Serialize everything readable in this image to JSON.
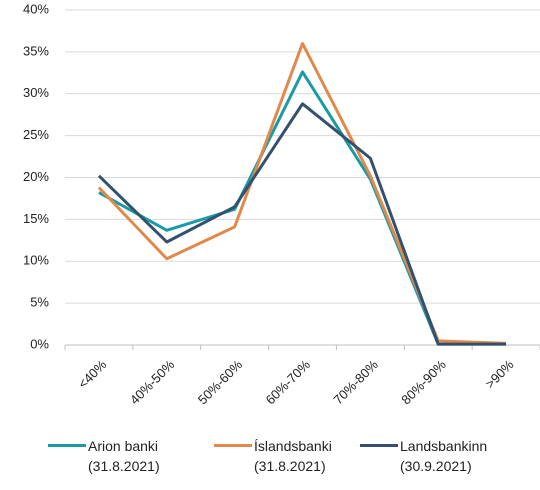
{
  "chart_data": {
    "type": "line",
    "categories": [
      "<40%",
      "40%-50%",
      "50%-60%",
      "60%-70%",
      "70%-80%",
      "80%-90%",
      ">90%"
    ],
    "series": [
      {
        "name": "Arion banki\n(31.8.2021)",
        "color": "#1b9aa6",
        "values": [
          18.2,
          13.7,
          16.2,
          32.6,
          19.8,
          0.1,
          0.1
        ]
      },
      {
        "name": "Íslandsbanki\n(31.8.2021)",
        "color": "#e0894a",
        "values": [
          18.8,
          10.3,
          14.1,
          36.0,
          20.2,
          0.5,
          0.2
        ]
      },
      {
        "name": "Landsbankinn\n(30.9.2021)",
        "color": "#33506e",
        "values": [
          20.2,
          12.3,
          16.5,
          28.8,
          22.3,
          0.1,
          0.1
        ]
      }
    ],
    "ylim": [
      0,
      40
    ],
    "yticks": [
      {
        "value": 0,
        "label": "0%"
      },
      {
        "value": 5,
        "label": "5%"
      },
      {
        "value": 10,
        "label": "10%"
      },
      {
        "value": 15,
        "label": "15%"
      },
      {
        "value": 20,
        "label": "20%"
      },
      {
        "value": 25,
        "label": "25%"
      },
      {
        "value": 30,
        "label": "30%"
      },
      {
        "value": 35,
        "label": "35%"
      },
      {
        "value": 40,
        "label": "40%"
      }
    ],
    "grid": true,
    "legend": "bottom"
  }
}
